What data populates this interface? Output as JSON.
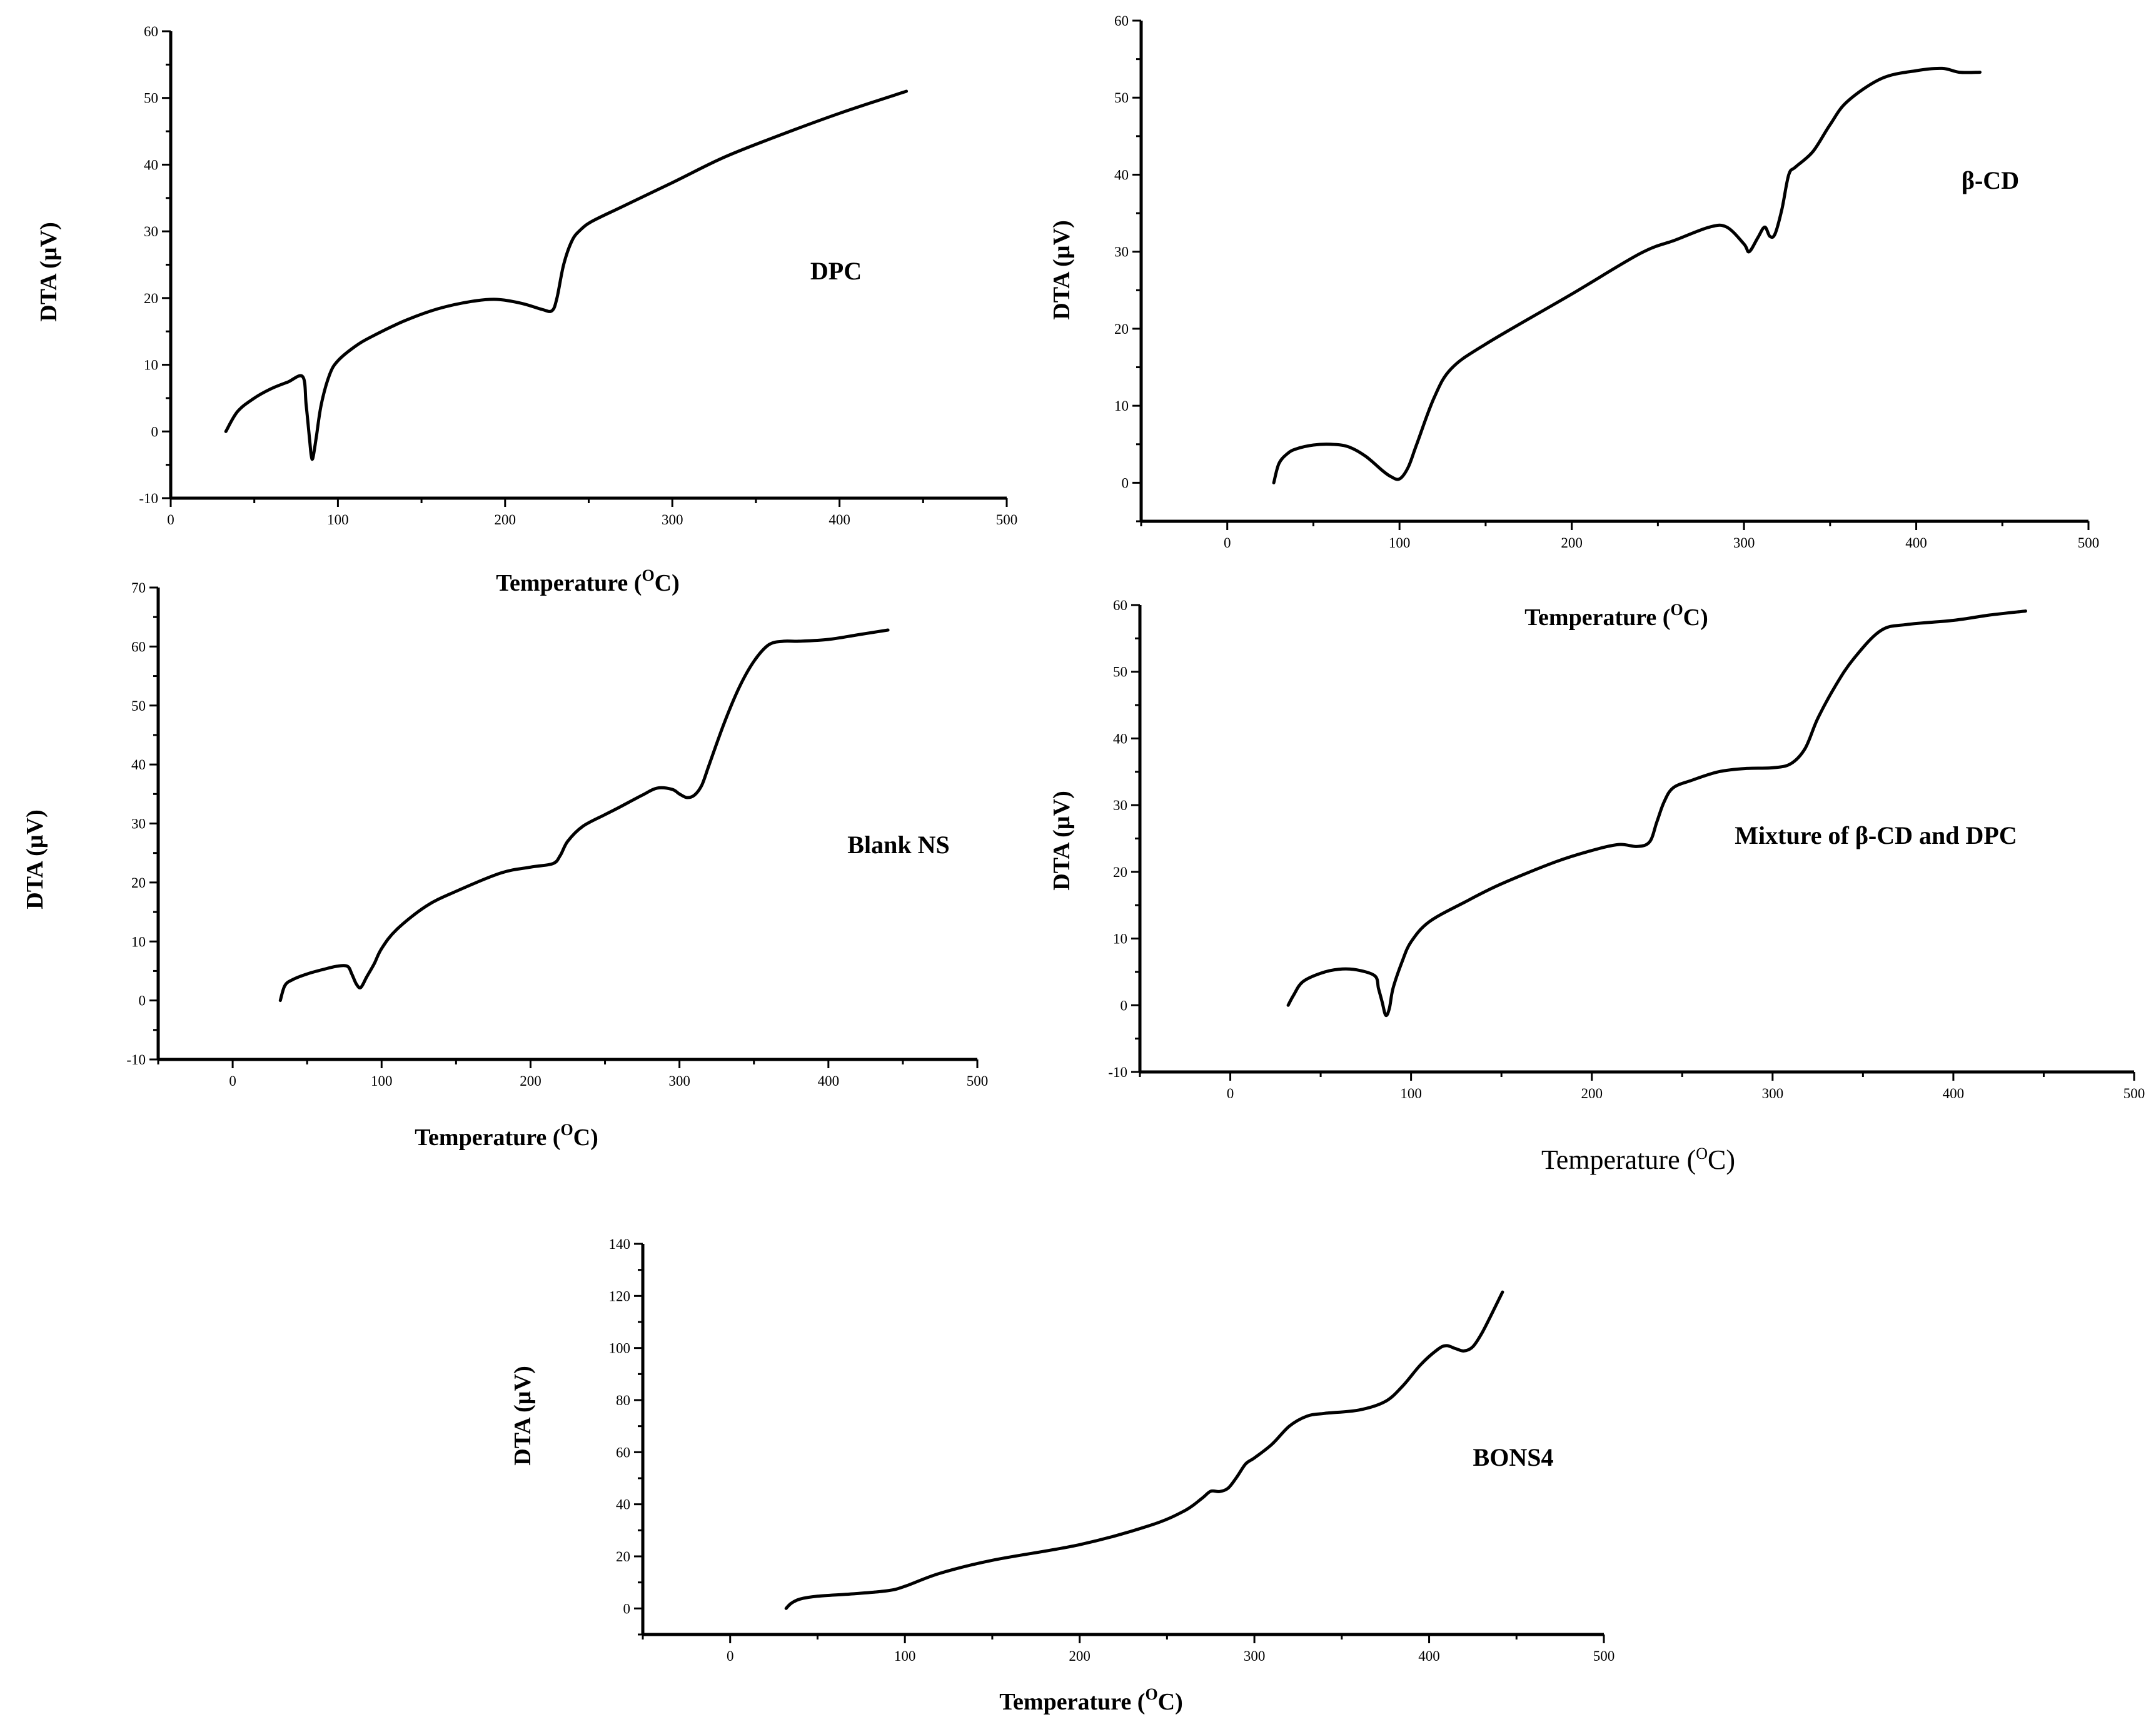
{
  "chart_data": [
    {
      "id": "dpc",
      "type": "line",
      "label": "DPC",
      "ylabel": "DTA (µV)",
      "xlabel_prefix": "Temperature (",
      "xlabel_sup": "O",
      "xlabel_suffix": "C)",
      "xlim": [
        0,
        500
      ],
      "ylim": [
        -10,
        60
      ],
      "xticks": [
        0,
        100,
        200,
        300,
        400,
        500
      ],
      "yticks": [
        -10,
        0,
        10,
        20,
        30,
        40,
        50,
        60
      ],
      "series": [
        {
          "name": "DPC",
          "x": [
            33,
            40,
            50,
            60,
            70,
            79,
            81,
            83,
            84,
            85,
            87,
            90,
            95,
            100,
            110,
            120,
            140,
            160,
            180,
            195,
            210,
            222,
            228,
            231,
            235,
            240,
            245,
            252,
            270,
            300,
            330,
            360,
            400,
            440
          ],
          "y": [
            0,
            3,
            5,
            6.4,
            7.4,
            8.2,
            4,
            -1,
            -3.5,
            -4,
            -1,
            4,
            8.5,
            10.6,
            12.7,
            14.2,
            16.6,
            18.4,
            19.5,
            19.8,
            19.2,
            18.3,
            18.1,
            20,
            25,
            28.6,
            30.2,
            31.5,
            33.7,
            37.3,
            41,
            44,
            47.7,
            51
          ]
        }
      ]
    },
    {
      "id": "beta-cd",
      "type": "line",
      "label": "β-CD",
      "ylabel": "DTA (µV)",
      "xlabel_prefix": "Temperature (",
      "xlabel_sup": "O",
      "xlabel_suffix": "C)",
      "xlim": [
        -50,
        500
      ],
      "ylim": [
        -5,
        60
      ],
      "xticks": [
        0,
        100,
        200,
        300,
        400,
        500
      ],
      "yticks": [
        0,
        10,
        20,
        30,
        40,
        50,
        60
      ],
      "series": [
        {
          "name": "β-CD",
          "x": [
            27,
            30,
            35,
            40,
            50,
            60,
            70,
            80,
            90,
            95,
            100,
            105,
            110,
            120,
            130,
            150,
            200,
            240,
            260,
            280,
            290,
            300,
            303,
            308,
            312,
            315,
            318,
            322,
            326,
            330,
            340,
            350,
            360,
            380,
            400,
            415,
            425,
            437
          ],
          "y": [
            0,
            2.5,
            3.8,
            4.4,
            4.9,
            5,
            4.7,
            3.5,
            1.6,
            0.8,
            0.5,
            2,
            5,
            11,
            14.8,
            18,
            24.5,
            29.8,
            31.5,
            33.2,
            33.2,
            31,
            30,
            31.8,
            33.2,
            32,
            32.3,
            35.5,
            40,
            41,
            43,
            46.5,
            49.5,
            52.5,
            53.5,
            53.8,
            53.3,
            53.3
          ]
        }
      ]
    },
    {
      "id": "blank-ns",
      "type": "line",
      "label": "Blank NS",
      "ylabel": "DTA (µV)",
      "xlabel_prefix": "Temperature (",
      "xlabel_sup": "O",
      "xlabel_suffix": "C)",
      "xlim": [
        -50,
        500
      ],
      "ylim": [
        -10,
        70
      ],
      "xticks": [
        0,
        100,
        200,
        300,
        400,
        500
      ],
      "yticks": [
        -10,
        0,
        10,
        20,
        30,
        40,
        50,
        60,
        70
      ],
      "series": [
        {
          "name": "Blank NS",
          "x": [
            32,
            35,
            40,
            50,
            60,
            70,
            77,
            80,
            83,
            86,
            90,
            95,
            100,
            110,
            130,
            150,
            180,
            200,
            215,
            220,
            225,
            235,
            250,
            260,
            275,
            285,
            295,
            300,
            305,
            310,
            315,
            320,
            330,
            340,
            350,
            360,
            370,
            380,
            400,
            420,
            440
          ],
          "y": [
            0,
            2.5,
            3.5,
            4.5,
            5.2,
            5.8,
            5.8,
            4.5,
            2.8,
            2.2,
            4,
            6.2,
            8.8,
            12,
            16,
            18.5,
            21.6,
            22.6,
            23.2,
            24.6,
            27,
            29.5,
            31.5,
            32.8,
            34.8,
            36,
            35.8,
            35,
            34.4,
            34.8,
            36.5,
            40,
            47,
            53,
            57.5,
            60.3,
            60.9,
            60.9,
            61.2,
            62,
            62.8
          ]
        }
      ]
    },
    {
      "id": "mixture",
      "type": "line",
      "label": "Mixture of β-CD and DPC",
      "ylabel": "DTA (µV)",
      "xlabel_prefix": "Temperature (",
      "xlabel_sup": "O",
      "xlabel_suffix": "C)",
      "xlim": [
        -50,
        500
      ],
      "ylim": [
        -10,
        60
      ],
      "xticks": [
        0,
        100,
        200,
        300,
        400,
        500
      ],
      "yticks": [
        -10,
        0,
        10,
        20,
        30,
        40,
        50,
        60
      ],
      "series": [
        {
          "name": "Mixture of β-CD and DPC",
          "x": [
            32,
            35,
            40,
            50,
            60,
            70,
            80,
            82,
            84,
            86,
            88,
            90,
            95,
            100,
            110,
            130,
            150,
            180,
            200,
            215,
            225,
            232,
            236,
            240,
            245,
            255,
            270,
            285,
            300,
            310,
            318,
            325,
            335,
            345,
            360,
            375,
            400,
            420,
            440
          ],
          "y": [
            0,
            1.5,
            3.5,
            4.8,
            5.4,
            5.3,
            4.4,
            2.5,
            0.5,
            -1.5,
            -0.5,
            2.5,
            6.5,
            9.5,
            12.5,
            15.5,
            18.2,
            21.5,
            23.2,
            24.1,
            23.8,
            24.5,
            27.5,
            30.5,
            32.6,
            33.7,
            35,
            35.5,
            35.6,
            36.2,
            38.5,
            43,
            48,
            52,
            56.2,
            57.1,
            57.7,
            58.5,
            59.1
          ]
        }
      ]
    },
    {
      "id": "bons4",
      "type": "line",
      "label": "BONS4",
      "ylabel": "DTA (µV)",
      "xlabel_prefix": "Temperature (",
      "xlabel_sup": "O",
      "xlabel_suffix": "C)",
      "xlim": [
        -50,
        500
      ],
      "ylim": [
        -10,
        140
      ],
      "xticks": [
        0,
        100,
        200,
        300,
        400,
        500
      ],
      "yticks": [
        0,
        20,
        40,
        60,
        80,
        100,
        120,
        140
      ],
      "series": [
        {
          "name": "BONS4",
          "x": [
            32,
            35,
            40,
            50,
            70,
            90,
            100,
            120,
            150,
            200,
            240,
            260,
            270,
            275,
            280,
            285,
            290,
            295,
            300,
            310,
            320,
            330,
            340,
            360,
            375,
            385,
            395,
            405,
            410,
            415,
            420,
            425,
            430,
            435,
            442
          ],
          "y": [
            0,
            2,
            3.6,
            4.7,
            5.6,
            6.8,
            8.5,
            13.5,
            18.5,
            24.5,
            31.8,
            37.5,
            42.3,
            45,
            44.9,
            46.2,
            50.5,
            55.5,
            57.8,
            63,
            70,
            73.8,
            74.9,
            76.2,
            79.5,
            85.5,
            93.5,
            99.5,
            100.9,
            99.8,
            98.9,
            100.5,
            105.5,
            112,
            121.5
          ]
        }
      ]
    }
  ]
}
